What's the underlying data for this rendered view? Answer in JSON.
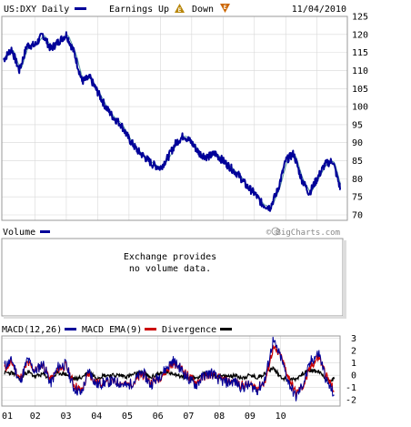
{
  "header": {
    "symbol": "US:DXY Daily",
    "earnings_label": "Earnings",
    "up_label": "Up",
    "up_glyph": "E",
    "down_label": "Down",
    "down_glyph": "E",
    "date": "11/04/2010"
  },
  "volume_panel": {
    "title": "Volume",
    "message_line1": "Exchange provides",
    "message_line2": "no volume data."
  },
  "watermark": "© BigCharts.com",
  "macd_legend": {
    "macd": "MACD(12,26)",
    "ema": "MACD EMA(9)",
    "divergence": "Divergence"
  },
  "colors": {
    "price": "#000099",
    "average": "#5f9ea0",
    "macd_ema": "#cc0000",
    "divergence": "#000000",
    "grid": "#d8d8d8",
    "frame": "#999999",
    "up_badge": "#b8860b",
    "down_badge": "#cc6600"
  },
  "chart_data": [
    {
      "type": "line",
      "title": "US:DXY Daily",
      "x": [
        "2000-01",
        "2000-04",
        "2000-07",
        "2000-10",
        "2001-01",
        "2001-04",
        "2001-07",
        "2001-10",
        "2002-01",
        "2002-04",
        "2002-07",
        "2002-10",
        "2003-01",
        "2003-04",
        "2003-07",
        "2003-10",
        "2004-01",
        "2004-04",
        "2004-07",
        "2004-10",
        "2005-01",
        "2005-04",
        "2005-07",
        "2005-10",
        "2006-01",
        "2006-04",
        "2006-07",
        "2006-10",
        "2007-01",
        "2007-04",
        "2007-07",
        "2007-10",
        "2008-01",
        "2008-04",
        "2008-07",
        "2008-10",
        "2009-01",
        "2009-04",
        "2009-07",
        "2009-10",
        "2010-01",
        "2010-04",
        "2010-07",
        "2010-10"
      ],
      "series": [
        {
          "values": [
            113,
            116,
            110,
            117,
            117,
            120,
            116,
            118,
            120,
            115,
            107,
            108,
            104,
            100,
            97,
            95,
            91,
            88,
            86,
            84,
            83,
            86,
            90,
            92,
            90,
            87,
            86,
            87,
            85,
            83,
            81,
            78,
            76,
            73,
            72,
            77,
            85,
            87,
            80,
            76,
            80,
            84,
            85,
            77
          ]
        }
      ],
      "ylim": [
        70,
        125
      ],
      "yticks": [
        70,
        75,
        80,
        85,
        90,
        95,
        100,
        105,
        110,
        115,
        120,
        125
      ],
      "grid": true
    },
    {
      "type": "line",
      "title": "MACD(12,26)",
      "x": [
        "2000-01",
        "2000-04",
        "2000-07",
        "2000-10",
        "2001-01",
        "2001-04",
        "2001-07",
        "2001-10",
        "2002-01",
        "2002-04",
        "2002-07",
        "2002-10",
        "2003-01",
        "2003-04",
        "2003-07",
        "2003-10",
        "2004-01",
        "2004-04",
        "2004-07",
        "2004-10",
        "2005-01",
        "2005-04",
        "2005-07",
        "2005-10",
        "2006-01",
        "2006-04",
        "2006-07",
        "2006-10",
        "2007-01",
        "2007-04",
        "2007-07",
        "2007-10",
        "2008-01",
        "2008-04",
        "2008-07",
        "2008-10",
        "2009-01",
        "2009-04",
        "2009-07",
        "2009-10",
        "2010-01",
        "2010-04",
        "2010-07",
        "2010-10"
      ],
      "categories": [
        "01",
        "02",
        "03",
        "04",
        "05",
        "06",
        "07",
        "08",
        "09",
        "10"
      ],
      "series": [
        {
          "name": "MACD(12,26)",
          "values": [
            0.8,
            1.2,
            -0.6,
            1.3,
            0.3,
            1.0,
            -0.7,
            0.7,
            0.9,
            -1.0,
            -1.5,
            0.4,
            -0.8,
            -0.6,
            -0.5,
            -0.6,
            -0.9,
            -0.4,
            0.3,
            -0.8,
            -0.2,
            0.5,
            1.2,
            0.5,
            -0.3,
            -0.8,
            0.0,
            0.2,
            -0.4,
            -0.6,
            -0.5,
            -1.0,
            -0.8,
            -1.2,
            -0.3,
            2.8,
            1.5,
            -0.5,
            -1.8,
            -0.6,
            1.2,
            1.8,
            -0.5,
            -1.6
          ]
        },
        {
          "name": "MACD EMA(9)",
          "values": [
            0.6,
            1.0,
            -0.3,
            1.0,
            0.4,
            0.9,
            -0.4,
            0.5,
            0.8,
            -0.7,
            -1.3,
            0.1,
            -0.6,
            -0.6,
            -0.5,
            -0.6,
            -0.8,
            -0.5,
            0.1,
            -0.6,
            -0.3,
            0.3,
            1.0,
            0.6,
            -0.1,
            -0.6,
            -0.1,
            0.1,
            -0.3,
            -0.5,
            -0.5,
            -0.8,
            -0.8,
            -1.0,
            -0.5,
            2.2,
            1.6,
            -0.1,
            -1.5,
            -0.8,
            0.8,
            1.5,
            -0.1,
            -1.3
          ]
        },
        {
          "name": "Divergence",
          "values": [
            0.2,
            0.2,
            -0.3,
            0.3,
            -0.1,
            0.1,
            -0.3,
            0.2,
            0.1,
            -0.3,
            -0.2,
            0.3,
            -0.2,
            0.0,
            0.0,
            0.0,
            -0.1,
            0.1,
            0.2,
            -0.2,
            0.1,
            0.2,
            0.2,
            -0.1,
            -0.2,
            -0.2,
            0.1,
            0.1,
            -0.1,
            -0.1,
            0.0,
            -0.2,
            0.0,
            -0.2,
            0.2,
            0.6,
            -0.1,
            -0.4,
            -0.3,
            0.2,
            0.4,
            0.3,
            -0.4,
            -0.3
          ]
        }
      ],
      "ylim": [
        -2.5,
        3.2
      ],
      "yticks": [
        -2,
        -1,
        0,
        1,
        2,
        3
      ],
      "grid": true
    }
  ]
}
